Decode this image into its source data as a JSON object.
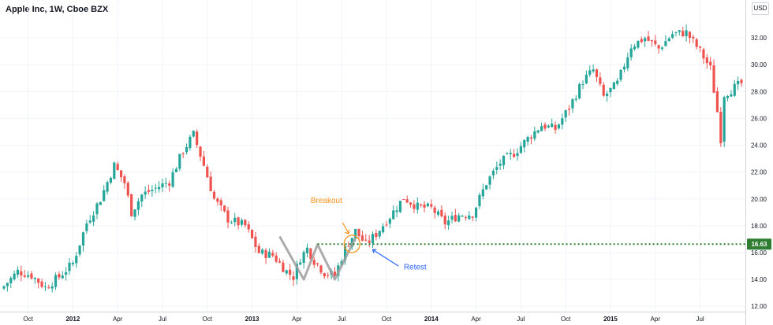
{
  "header": {
    "title": "Apple Inc, 1W, Cboe BZX",
    "currency": "USD"
  },
  "colors": {
    "up": "#26a69a",
    "down": "#ef5350",
    "level": "#2e7d32",
    "pattern": "#9e9e9e",
    "breakout": "#f7931a",
    "retest": "#2962ff",
    "grid": "#f0f3fa",
    "axis_text": "#131722"
  },
  "chart_data": {
    "type": "candlestick",
    "title": "Apple Inc, 1W, Cboe BZX",
    "ylim": [
      11.6,
      34.0
    ],
    "y_ticks": [
      "12.00",
      "14.00",
      "16.00",
      "18.00",
      "20.00",
      "22.00",
      "24.00",
      "26.00",
      "28.00",
      "30.00",
      "32.00"
    ],
    "x_ticks": [
      {
        "label": "Oct",
        "week": 7
      },
      {
        "label": "2012",
        "week": 20
      },
      {
        "label": "Apr",
        "week": 33
      },
      {
        "label": "Jul",
        "week": 46
      },
      {
        "label": "Oct",
        "week": 59
      },
      {
        "label": "2013",
        "week": 72
      },
      {
        "label": "Apr",
        "week": 85
      },
      {
        "label": "Jul",
        "week": 98
      },
      {
        "label": "Oct",
        "week": 111
      },
      {
        "label": "2014",
        "week": 124
      },
      {
        "label": "Apr",
        "week": 137
      },
      {
        "label": "Jul",
        "week": 150
      },
      {
        "label": "Oct",
        "week": 163
      },
      {
        "label": "2015",
        "week": 176
      },
      {
        "label": "Apr",
        "week": 189
      },
      {
        "label": "Jul",
        "week": 202
      }
    ],
    "weeks": 215,
    "close_path": [
      [
        0,
        13.5
      ],
      [
        4,
        14.6
      ],
      [
        8,
        14.3
      ],
      [
        12,
        13.4
      ],
      [
        16,
        14.2
      ],
      [
        20,
        15.2
      ],
      [
        24,
        18.2
      ],
      [
        28,
        20.0
      ],
      [
        32,
        22.5
      ],
      [
        35,
        21.2
      ],
      [
        37,
        19.0
      ],
      [
        40,
        20.3
      ],
      [
        44,
        20.8
      ],
      [
        48,
        21.3
      ],
      [
        52,
        23.6
      ],
      [
        55,
        24.8
      ],
      [
        58,
        22.5
      ],
      [
        61,
        20.0
      ],
      [
        65,
        18.5
      ],
      [
        70,
        18.0
      ],
      [
        74,
        16.0
      ],
      [
        78,
        15.8
      ],
      [
        82,
        14.6
      ],
      [
        84,
        14.2
      ],
      [
        86,
        15.6
      ],
      [
        88,
        16.3
      ],
      [
        90,
        15.4
      ],
      [
        93,
        14.5
      ],
      [
        96,
        14.3
      ],
      [
        99,
        16.3
      ],
      [
        102,
        17.6
      ],
      [
        105,
        16.6
      ],
      [
        108,
        17.4
      ],
      [
        112,
        18.7
      ],
      [
        116,
        20.1
      ],
      [
        120,
        19.4
      ],
      [
        124,
        19.3
      ],
      [
        128,
        18.2
      ],
      [
        132,
        18.8
      ],
      [
        136,
        18.9
      ],
      [
        140,
        21.2
      ],
      [
        144,
        22.7
      ],
      [
        148,
        23.4
      ],
      [
        152,
        24.5
      ],
      [
        156,
        25.5
      ],
      [
        160,
        25.2
      ],
      [
        164,
        26.8
      ],
      [
        168,
        28.8
      ],
      [
        171,
        29.6
      ],
      [
        174,
        27.6
      ],
      [
        178,
        28.6
      ],
      [
        182,
        31.4
      ],
      [
        186,
        32.0
      ],
      [
        190,
        31.2
      ],
      [
        194,
        32.3
      ],
      [
        198,
        32.4
      ],
      [
        202,
        31.0
      ],
      [
        205,
        29.7
      ],
      [
        207,
        26.5
      ],
      [
        208,
        24.5
      ],
      [
        209,
        27.8
      ],
      [
        212,
        28.3
      ],
      [
        214,
        28.6
      ]
    ],
    "horizontal_level": {
      "value": 16.63,
      "label": "16.63",
      "start_week": 91
    },
    "pattern_line": [
      [
        80,
        17.2
      ],
      [
        87,
        14.0
      ],
      [
        91,
        16.6
      ],
      [
        96,
        14.0
      ],
      [
        102,
        17.1
      ]
    ],
    "annotations": {
      "breakout": {
        "label": "Breakout",
        "week": 101,
        "value": 16.65,
        "text_week": 89,
        "text_value": 19.7
      },
      "retest": {
        "label": "Retest",
        "week": 106.5,
        "value": 16.4,
        "text_week": 116,
        "text_value": 14.75
      }
    }
  }
}
